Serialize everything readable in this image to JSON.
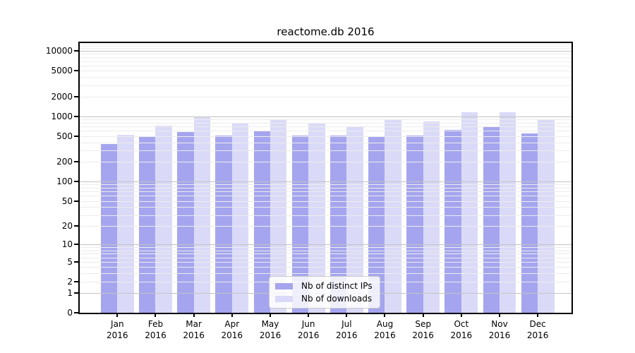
{
  "chart_data": {
    "type": "bar",
    "title": "reactome.db 2016",
    "categories": [
      "Jan",
      "Feb",
      "Mar",
      "Apr",
      "May",
      "Jun",
      "Jul",
      "Aug",
      "Sep",
      "Oct",
      "Nov",
      "Dec"
    ],
    "x_year_label": "2016",
    "series": [
      {
        "name": "Nb of distinct IPs",
        "color": "#a5a5ef",
        "values": [
          380,
          495,
          570,
          510,
          600,
          510,
          510,
          485,
          505,
          620,
          705,
          550
        ]
      },
      {
        "name": "Nb of downloads",
        "color": "#dadaf8",
        "values": [
          520,
          720,
          970,
          795,
          910,
          785,
          705,
          885,
          830,
          1160,
          1160,
          885
        ]
      }
    ],
    "yscale": "log1p",
    "ylim": [
      0,
      13200
    ],
    "yticks": [
      0,
      1,
      2,
      5,
      10,
      20,
      50,
      100,
      200,
      500,
      1000,
      2000,
      5000,
      10000
    ],
    "grid": {
      "on": true,
      "major_color": "#c3c3c3",
      "minor_color": "#ececec"
    },
    "legend": {
      "position": "lower center"
    }
  }
}
